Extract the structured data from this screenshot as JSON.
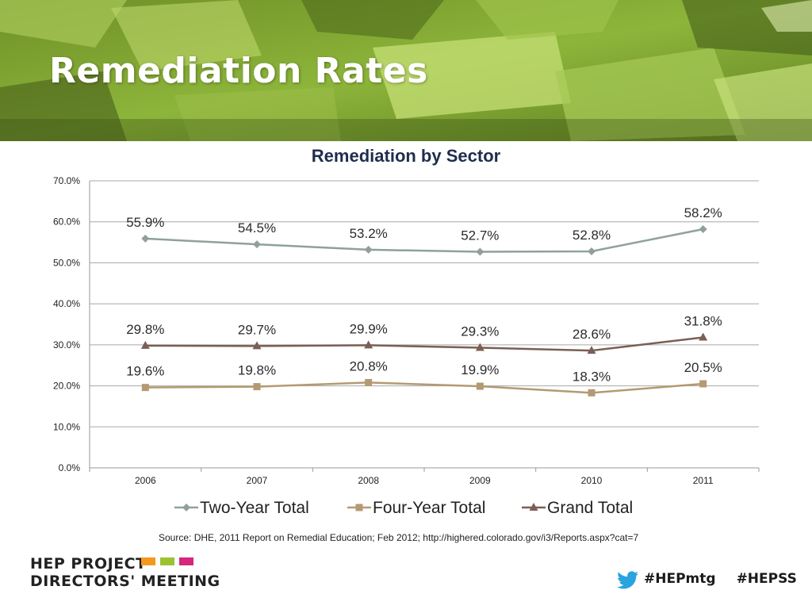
{
  "slide": {
    "title": "Remediation Rates",
    "source": "Source: DHE, 2011 Report on Remedial Education; Feb 2012; http://highered.colorado.gov/i3/Reports.aspx?cat=7",
    "footer": {
      "logo_line1": "HEP PROJECT",
      "logo_line2": "DIRECTORS' MEETING",
      "cap_colors": [
        "#f39a1e",
        "#9cc232",
        "#d6267e"
      ],
      "twitter_icon": "twitter-bird-icon",
      "hashtags": [
        "#HEPmtg",
        "#HEPSS"
      ]
    },
    "banner_color": "#8db53a"
  },
  "chart_data": {
    "type": "line",
    "title": "Remediation by Sector",
    "xlabel": "",
    "ylabel": "",
    "categories": [
      "2006",
      "2007",
      "2008",
      "2009",
      "2010",
      "2011"
    ],
    "ylim": [
      0,
      70
    ],
    "yticks": [
      "0.0%",
      "10.0%",
      "20.0%",
      "30.0%",
      "40.0%",
      "50.0%",
      "60.0%",
      "70.0%"
    ],
    "grid": true,
    "legend": "bottom",
    "series": [
      {
        "name": "Two-Year Total",
        "marker": "diamond",
        "color": "#8fa19a",
        "values": [
          55.9,
          54.5,
          53.2,
          52.7,
          52.8,
          58.2
        ],
        "labels": [
          "55.9%",
          "54.5%",
          "53.2%",
          "52.7%",
          "52.8%",
          "58.2%"
        ]
      },
      {
        "name": "Four-Year Total",
        "marker": "square",
        "color": "#b39a72",
        "values": [
          19.6,
          19.8,
          20.8,
          19.9,
          18.3,
          20.5
        ],
        "labels": [
          "19.6%",
          "19.8%",
          "20.8%",
          "19.9%",
          "18.3%",
          "20.5%"
        ]
      },
      {
        "name": "Grand Total",
        "marker": "triangle",
        "color": "#7a5f55",
        "values": [
          29.8,
          29.7,
          29.9,
          29.3,
          28.6,
          31.8
        ],
        "labels": [
          "29.8%",
          "29.7%",
          "29.9%",
          "29.3%",
          "28.6%",
          "31.8%"
        ]
      }
    ]
  }
}
